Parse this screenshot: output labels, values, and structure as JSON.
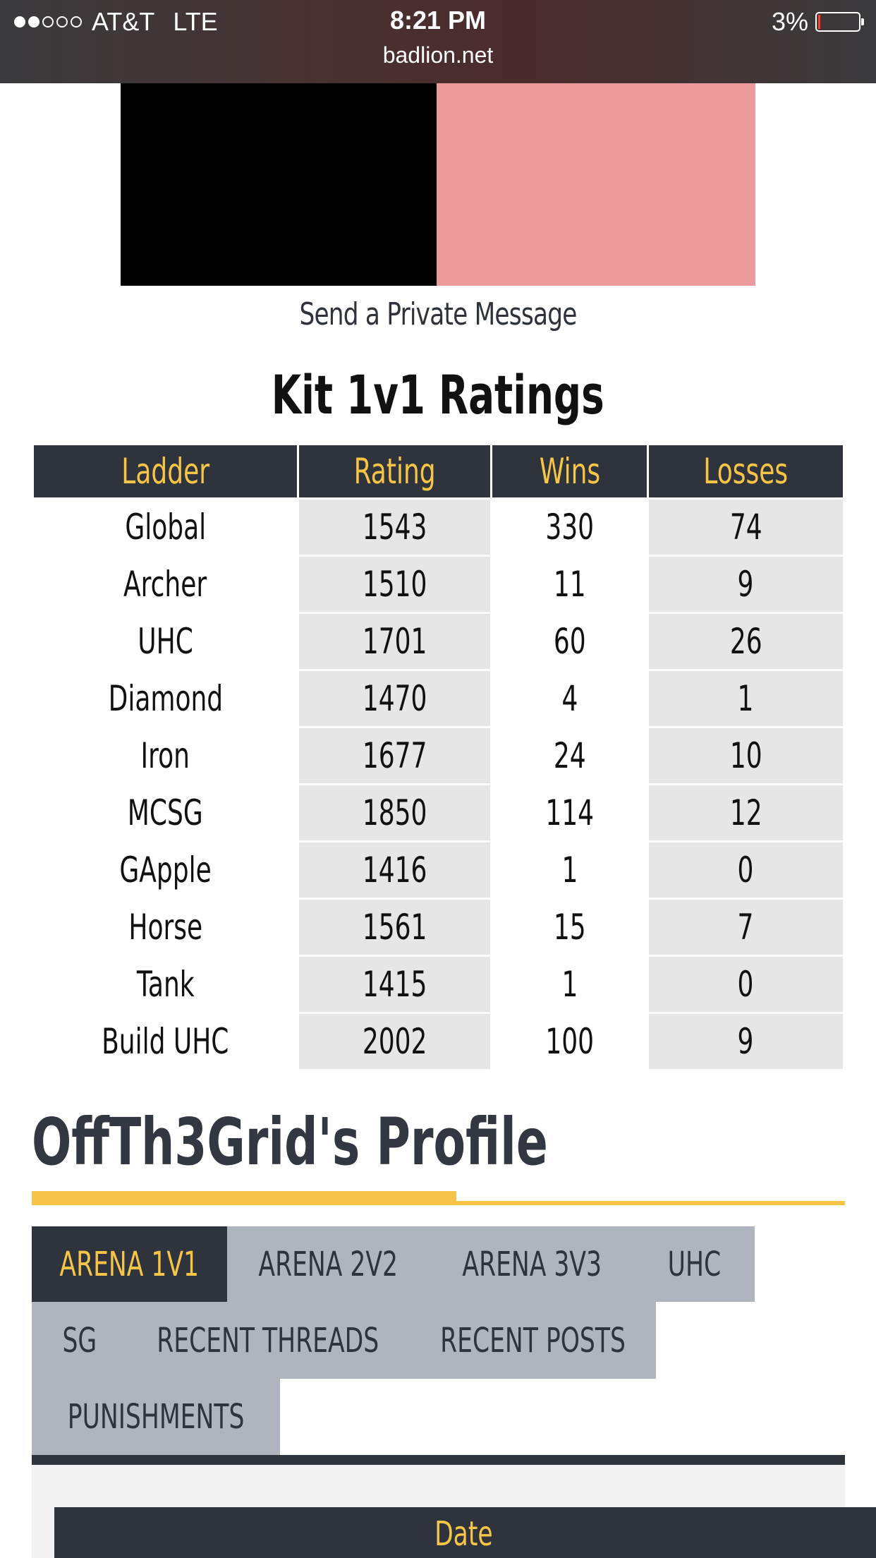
{
  "status_bar": {
    "signal": "●●○○○",
    "carrier": "AT&T",
    "network": "LTE",
    "time": "8:21 PM",
    "url": "badlion.net",
    "battery": "3%"
  },
  "banner": {
    "left_color": "#000000",
    "right_color": "#eb9b9b"
  },
  "profile_actions": {
    "private_message": "Send a Private Message"
  },
  "ratings": {
    "title": "Kit 1v1 Ratings",
    "headers": [
      "Ladder",
      "Rating",
      "Wins",
      "Losses"
    ],
    "rows": [
      [
        "Global",
        "1543",
        "330",
        "74"
      ],
      [
        "Archer",
        "1510",
        "11",
        "9"
      ],
      [
        "UHC",
        "1701",
        "60",
        "26"
      ],
      [
        "Diamond",
        "1470",
        "4",
        "1"
      ],
      [
        "Iron",
        "1677",
        "24",
        "10"
      ],
      [
        "MCSG",
        "1850",
        "114",
        "12"
      ],
      [
        "GApple",
        "1416",
        "1",
        "0"
      ],
      [
        "Horse",
        "1561",
        "15",
        "7"
      ],
      [
        "Tank",
        "1415",
        "1",
        "0"
      ],
      [
        "Build UHC",
        "2002",
        "100",
        "9"
      ]
    ]
  },
  "profile": {
    "title": "OffTh3Grid's Profile",
    "tabs": [
      "ARENA 1V1",
      "ARENA 2V2",
      "ARENA 3V3",
      "UHC",
      "SG",
      "RECENT THREADS",
      "RECENT POSTS",
      "PUNISHMENTS"
    ],
    "active_tab": "ARENA 1V1",
    "table_header_visible": "Date"
  },
  "colors": {
    "dark": "#2f333c",
    "accent": "#f6c548",
    "tab": "#b0b4bf"
  }
}
